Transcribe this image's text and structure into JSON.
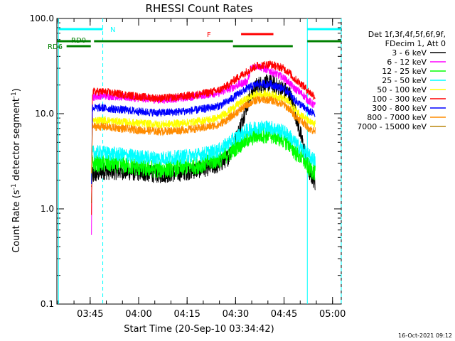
{
  "chart_data": {
    "type": "line",
    "title": "RHESSI Count Rates",
    "xlabel": "Start Time (20-Sep-10 03:34:42)",
    "ylabel": "Count Rate (s⁻¹ detector segment⁻¹)",
    "ylabel_main": "Count Rate (s",
    "ylabel_exp1": "-1",
    "ylabel_mid": " detector segment",
    "ylabel_exp2": "-1",
    "ylabel_end": ")",
    "y_scale": "log",
    "ylim": [
      0.1,
      100.0
    ],
    "xlim_minutes": [
      0,
      88
    ],
    "y_ticks": [
      {
        "value": 0.1,
        "label": "0.1"
      },
      {
        "value": 1.0,
        "label": "1.0"
      },
      {
        "value": 10.0,
        "label": "10.0"
      },
      {
        "value": 100.0,
        "label": "100.0"
      }
    ],
    "x_ticks": [
      {
        "minute": 10.3,
        "label": "03:45"
      },
      {
        "minute": 25.3,
        "label": "04:00"
      },
      {
        "minute": 40.3,
        "label": "04:15"
      },
      {
        "minute": 55.3,
        "label": "04:30"
      },
      {
        "minute": 70.3,
        "label": "04:45"
      },
      {
        "minute": 85.3,
        "label": "05:00"
      }
    ],
    "legend": {
      "header1": "Det 1f,3f,4f,5f,6f,9f,",
      "header2": "FDecim 1, Att 0",
      "placement": "right"
    },
    "series": [
      {
        "name": "3 - 6 keV",
        "color": "#000000",
        "x": [
          11,
          14,
          20,
          26,
          32,
          38,
          44,
          50,
          53,
          56,
          59,
          62,
          66,
          70,
          72,
          73,
          76,
          78,
          80
        ],
        "y": [
          2.2,
          2.5,
          2.5,
          2.4,
          2.3,
          2.4,
          2.6,
          2.9,
          3.5,
          6,
          13,
          20,
          21,
          18,
          16,
          13,
          5,
          2.5,
          1.9
        ]
      },
      {
        "name": "6 - 12 keV",
        "color": "#ff00ff",
        "x": [
          11,
          14,
          20,
          26,
          32,
          38,
          44,
          50,
          53,
          56,
          59,
          60,
          62,
          66,
          70,
          72,
          73,
          76,
          78,
          80
        ],
        "y": [
          15,
          15.5,
          15,
          14.5,
          14,
          14.5,
          15.5,
          16.5,
          18,
          20,
          22,
          30,
          32,
          28,
          24,
          21,
          19,
          16,
          13.5,
          12
        ]
      },
      {
        "name": "12 - 25 keV",
        "color": "#00ff00",
        "x": [
          11,
          14,
          20,
          26,
          32,
          38,
          44,
          50,
          53,
          56,
          59,
          62,
          66,
          70,
          72,
          73,
          76,
          78,
          80
        ],
        "y": [
          3.0,
          3.0,
          2.9,
          2.7,
          2.6,
          2.7,
          2.9,
          3.3,
          3.8,
          4.6,
          5.4,
          6.0,
          6.0,
          5.4,
          4.8,
          4.2,
          3.4,
          2.7,
          2.4
        ]
      },
      {
        "name": "25 - 50 keV",
        "color": "#00ffff",
        "x": [
          11,
          14,
          20,
          26,
          32,
          38,
          44,
          50,
          53,
          56,
          59,
          62,
          66,
          70,
          72,
          73,
          76,
          78,
          80
        ],
        "y": [
          3.9,
          3.9,
          3.7,
          3.5,
          3.4,
          3.5,
          3.7,
          4.1,
          4.9,
          5.8,
          6.7,
          7.2,
          7.2,
          6.5,
          5.9,
          5.2,
          4.2,
          3.6,
          3.2
        ]
      },
      {
        "name": "50 - 100 keV",
        "color": "#ffff00",
        "x": [
          11,
          14,
          20,
          26,
          32,
          38,
          44,
          50,
          53,
          56,
          59,
          62,
          66,
          70,
          72,
          73,
          76,
          78,
          80
        ],
        "y": [
          8.5,
          8.5,
          8.2,
          7.9,
          7.7,
          7.9,
          8.3,
          9.0,
          10.5,
          12.5,
          14.5,
          16,
          16,
          14.5,
          13,
          11.5,
          9.5,
          8.2,
          7.6
        ]
      },
      {
        "name": "100 - 300 keV",
        "color": "#ff0000",
        "x": [
          11,
          14,
          20,
          26,
          32,
          38,
          44,
          50,
          53,
          56,
          59,
          62,
          66,
          70,
          72,
          73,
          76,
          78,
          80
        ],
        "y": [
          17,
          17,
          16,
          15,
          14.5,
          15,
          16,
          17.5,
          20,
          24,
          28,
          32,
          33,
          30,
          27,
          24,
          20,
          17,
          15
        ]
      },
      {
        "name": "300 - 800 keV",
        "color": "#0000ff",
        "x": [
          11,
          14,
          20,
          26,
          32,
          38,
          44,
          50,
          53,
          56,
          59,
          62,
          66,
          70,
          72,
          73,
          76,
          78,
          80
        ],
        "y": [
          11.5,
          11.5,
          11,
          10.5,
          10.2,
          10.5,
          11,
          12,
          13.5,
          16,
          18.5,
          20.5,
          20.5,
          18.5,
          16.5,
          14.5,
          12,
          10.5,
          9.8
        ]
      },
      {
        "name": "800 - 7000 keV",
        "color": "#ff8c00",
        "x": [
          11,
          14,
          20,
          26,
          32,
          38,
          44,
          50,
          53,
          56,
          59,
          62,
          66,
          70,
          72,
          73,
          76,
          78,
          80
        ],
        "y": [
          7.3,
          7.3,
          7.0,
          6.7,
          6.5,
          6.7,
          7.0,
          7.6,
          8.8,
          10.5,
          12.5,
          14,
          14,
          12.5,
          11.2,
          9.9,
          8.2,
          7.0,
          6.5
        ]
      },
      {
        "name": "7000 - 15000 keV",
        "color": "#b8860b",
        "x": [],
        "y": []
      }
    ],
    "vertical_markers": [
      {
        "minute": 0.5,
        "style": "solid",
        "color": "#00ffff"
      },
      {
        "minute": 14.2,
        "style": "dashed",
        "color": "#00ffff"
      },
      {
        "minute": 77.5,
        "style": "solid",
        "color": "#00ffff"
      },
      {
        "minute": 88.0,
        "style": "dashed",
        "color": "#00ffff"
      }
    ],
    "flag_bars": [
      {
        "label": "N",
        "color": "#00ffff",
        "segments": [
          [
            0.5,
            14.2
          ],
          [
            77.5,
            88
          ]
        ],
        "level": 1
      },
      {
        "label": "RD0",
        "color": "#008000",
        "segments": [
          [
            0,
            10.5
          ],
          [
            11.5,
            54.5
          ],
          [
            77.5,
            88
          ]
        ],
        "level": 2
      },
      {
        "label": "RD6",
        "color": "#008000",
        "segments": [
          [
            3,
            10.5
          ],
          [
            54.5,
            73
          ]
        ],
        "level": 3
      },
      {
        "label": "F",
        "color": "#ff0000",
        "segments": [
          [
            57,
            67
          ]
        ],
        "level": 0
      }
    ]
  },
  "footer": {
    "timestamp": "16-Oct-2021 09:12"
  }
}
